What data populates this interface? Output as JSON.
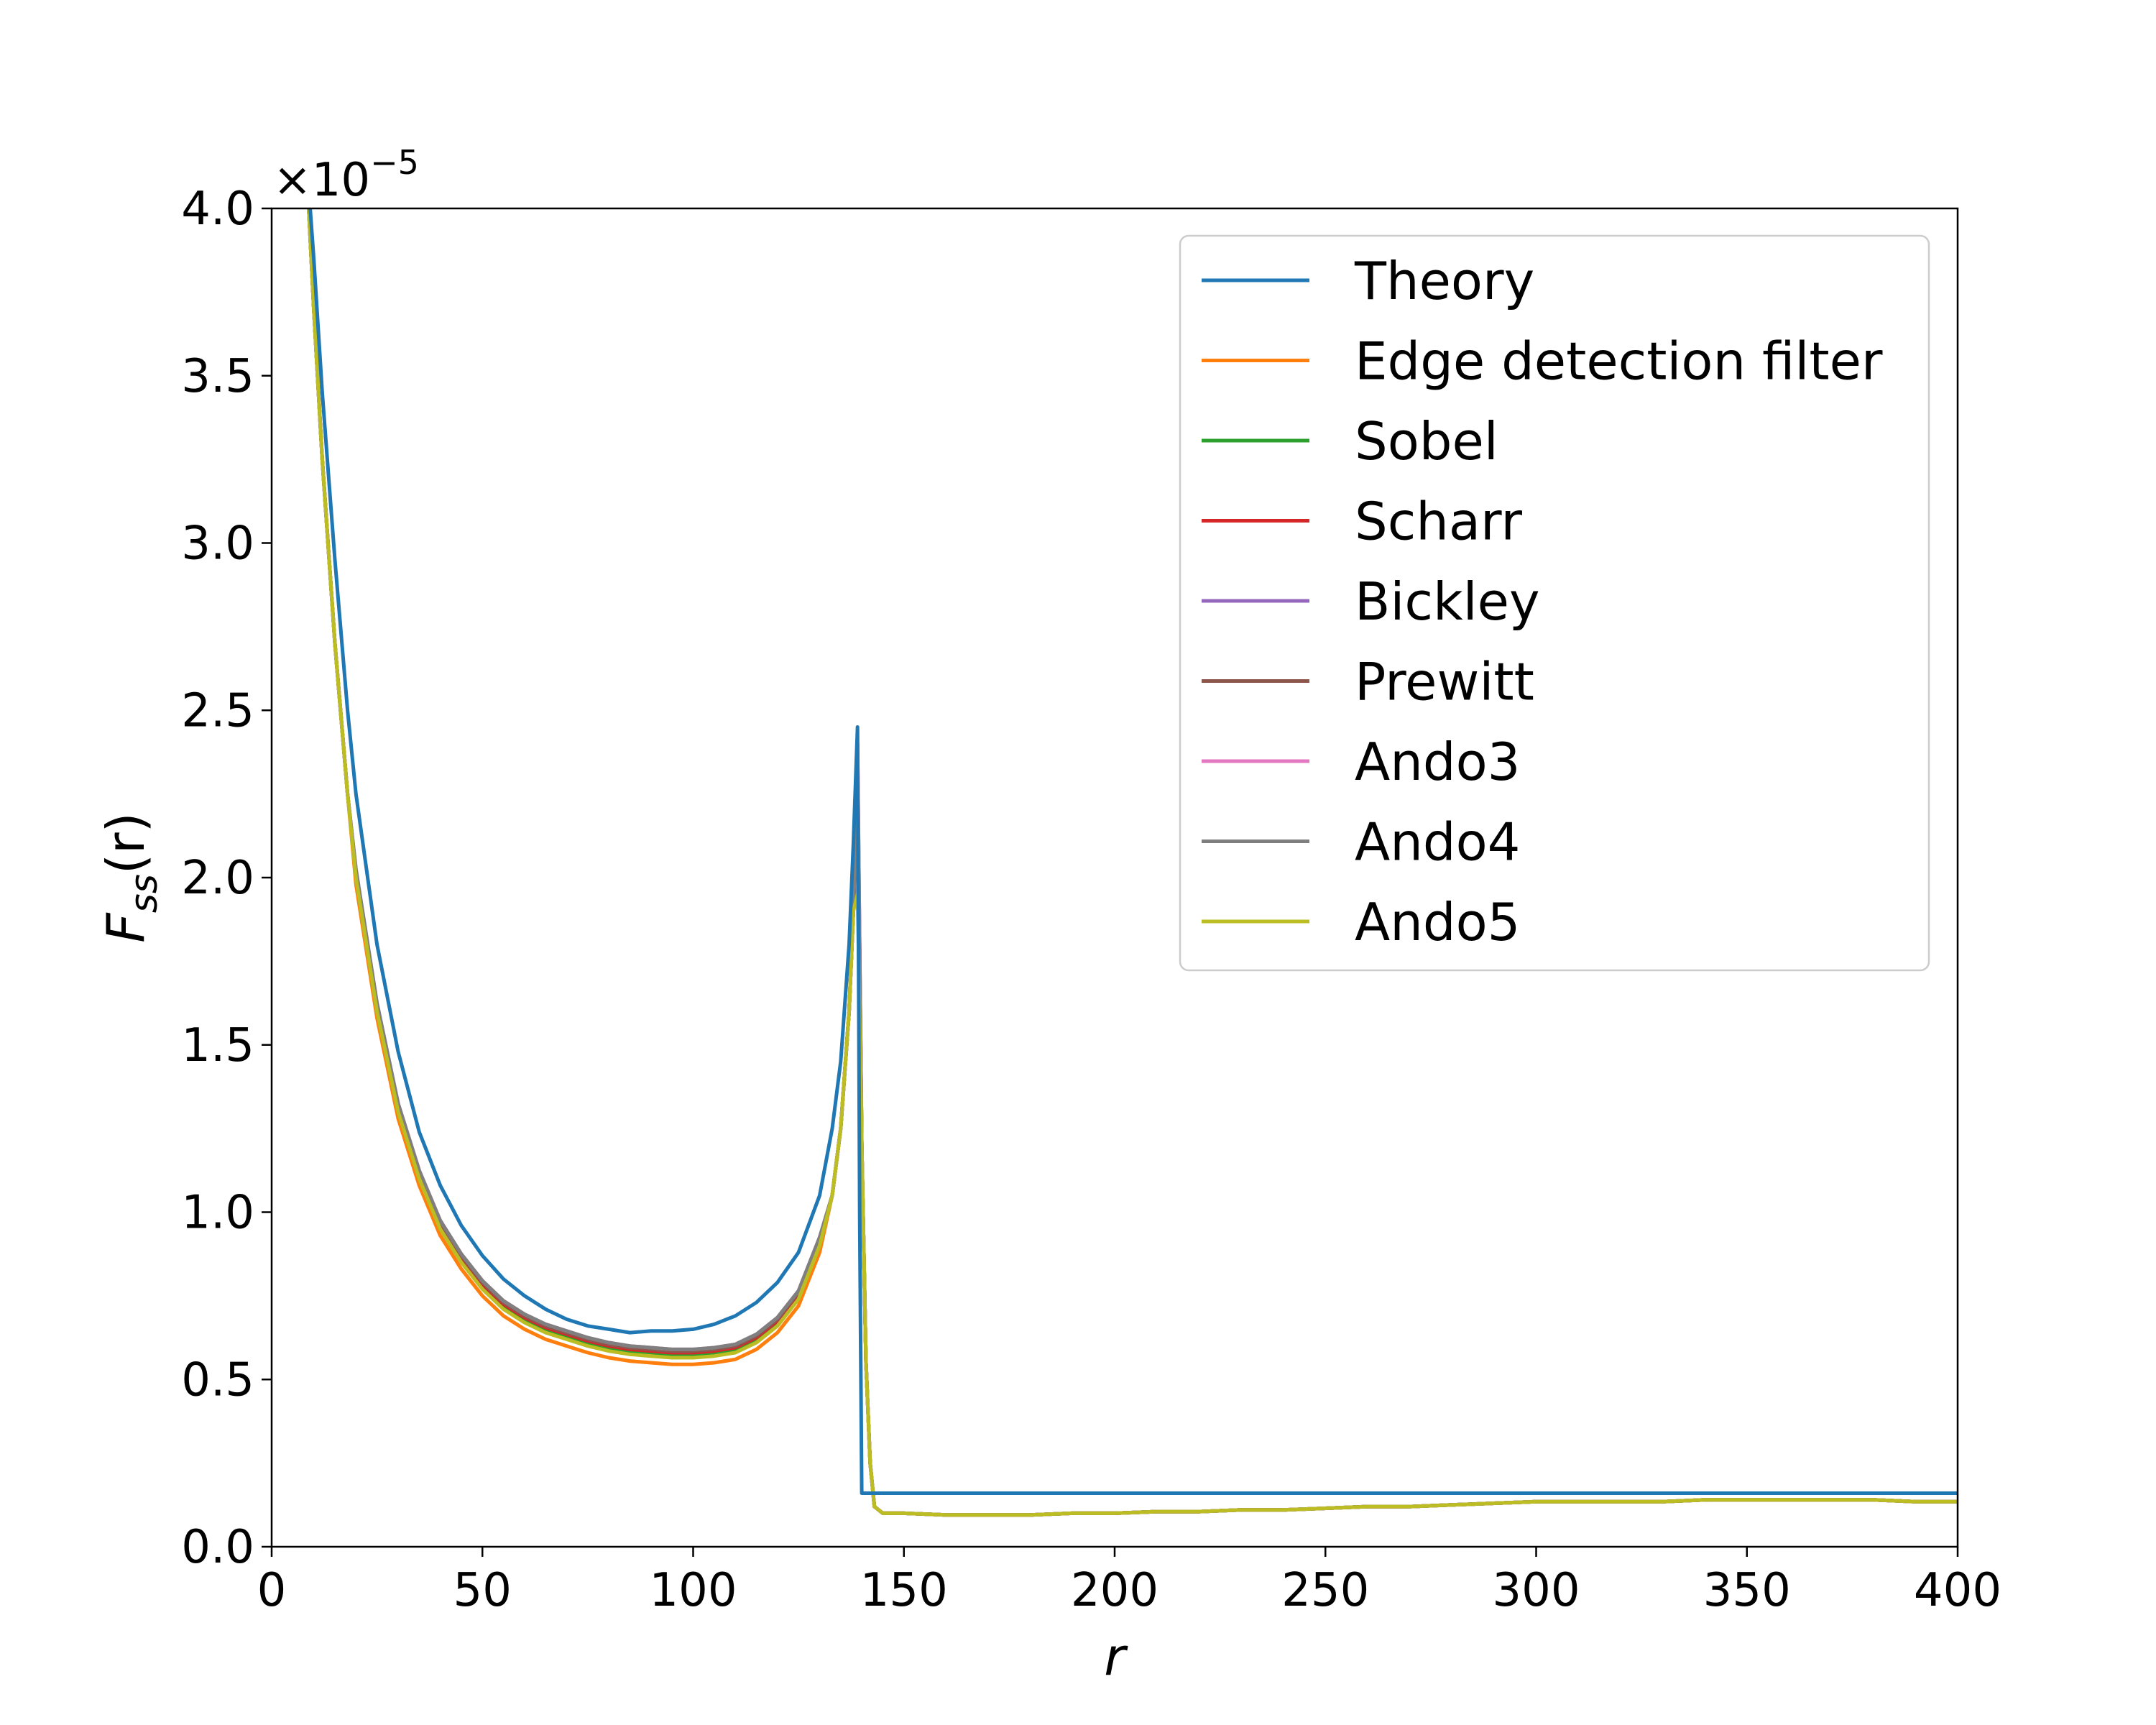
{
  "chart_data": {
    "type": "line",
    "title": "",
    "xlabel": "r",
    "ylabel_main": "F",
    "ylabel_sub": "ss",
    "ylabel_tail": "(r)",
    "xlim": [
      0,
      400
    ],
    "ylim": [
      0,
      4.0
    ],
    "y_offset_prefix": "×10",
    "y_offset_exp": "−5",
    "grid": false,
    "legend_position": "upper-right",
    "xticks": [
      0,
      50,
      100,
      150,
      200,
      250,
      300,
      350,
      400
    ],
    "xtick_labels": [
      "0",
      "50",
      "100",
      "150",
      "200",
      "250",
      "300",
      "350",
      "400"
    ],
    "yticks": [
      0,
      0.5,
      1.0,
      1.5,
      2.0,
      2.5,
      3.0,
      3.5,
      4.0
    ],
    "ytick_labels": [
      "0.0",
      "0.5",
      "1.0",
      "1.5",
      "2.0",
      "2.5",
      "3.0",
      "3.5",
      "4.0"
    ],
    "series": [
      {
        "name": "Theory",
        "color": "#1f77b4",
        "kind": "theory",
        "peak": 2.45,
        "delta": 0.0,
        "tail_level": 0.16
      },
      {
        "name": "Edge detection filter",
        "color": "#ff7f0e",
        "kind": "filter",
        "peak": 2.1,
        "delta": -0.02
      },
      {
        "name": "Sobel",
        "color": "#2ca02c",
        "kind": "filter",
        "peak": 2.3,
        "delta": 0.01
      },
      {
        "name": "Scharr",
        "color": "#d62728",
        "kind": "filter",
        "peak": 2.35,
        "delta": 0.015
      },
      {
        "name": "Bickley",
        "color": "#9467bd",
        "kind": "filter",
        "peak": 2.4,
        "delta": 0.02
      },
      {
        "name": "Prewitt",
        "color": "#8c564b",
        "kind": "filter",
        "peak": 2.3,
        "delta": 0.02
      },
      {
        "name": "Ando3",
        "color": "#e377c2",
        "kind": "filter",
        "peak": 2.4,
        "delta": 0.025
      },
      {
        "name": "Ando4",
        "color": "#7f7f7f",
        "kind": "filter",
        "peak": 2.38,
        "delta": 0.025
      },
      {
        "name": "Ando5",
        "color": "#bcbd22",
        "kind": "filter",
        "peak": 1.95,
        "delta": 0.0
      }
    ],
    "filter_curve": {
      "x": [
        8,
        10,
        12,
        15,
        18,
        20,
        25,
        30,
        35,
        40,
        45,
        50,
        55,
        60,
        65,
        70,
        75,
        80,
        85,
        90,
        95,
        100,
        105,
        110,
        115,
        120,
        125,
        130,
        133,
        135,
        137,
        138,
        139,
        140,
        141,
        142,
        143,
        145,
        150,
        160,
        170,
        180,
        190,
        200,
        210,
        220,
        230,
        240,
        250,
        260,
        270,
        280,
        290,
        300,
        310,
        320,
        330,
        340,
        350,
        360,
        370,
        380,
        390,
        400
      ],
      "y": [
        4.2,
        3.7,
        3.25,
        2.7,
        2.25,
        2.0,
        1.6,
        1.3,
        1.1,
        0.95,
        0.85,
        0.77,
        0.71,
        0.67,
        0.64,
        0.62,
        0.6,
        0.585,
        0.575,
        0.57,
        0.565,
        0.565,
        0.57,
        0.58,
        0.61,
        0.66,
        0.74,
        0.9,
        1.05,
        1.25,
        1.6,
        1.9,
        2.2,
        1.2,
        0.55,
        0.25,
        0.12,
        0.1,
        0.1,
        0.095,
        0.095,
        0.095,
        0.1,
        0.1,
        0.105,
        0.105,
        0.11,
        0.11,
        0.115,
        0.12,
        0.12,
        0.125,
        0.13,
        0.135,
        0.135,
        0.135,
        0.135,
        0.14,
        0.14,
        0.14,
        0.14,
        0.14,
        0.135,
        0.135
      ]
    },
    "theory_curve": {
      "x": [
        8,
        10,
        12,
        15,
        18,
        20,
        25,
        30,
        35,
        40,
        45,
        50,
        55,
        60,
        65,
        70,
        75,
        80,
        85,
        90,
        95,
        100,
        105,
        110,
        115,
        120,
        125,
        130,
        133,
        135,
        137,
        138,
        139,
        139.5,
        140,
        141,
        400
      ],
      "y": [
        4.2,
        3.85,
        3.45,
        2.95,
        2.5,
        2.25,
        1.8,
        1.48,
        1.24,
        1.08,
        0.96,
        0.87,
        0.8,
        0.75,
        0.71,
        0.68,
        0.66,
        0.65,
        0.64,
        0.645,
        0.645,
        0.65,
        0.665,
        0.69,
        0.73,
        0.79,
        0.88,
        1.05,
        1.25,
        1.45,
        1.8,
        2.1,
        2.45,
        1.0,
        0.16,
        0.16,
        0.16
      ]
    }
  }
}
